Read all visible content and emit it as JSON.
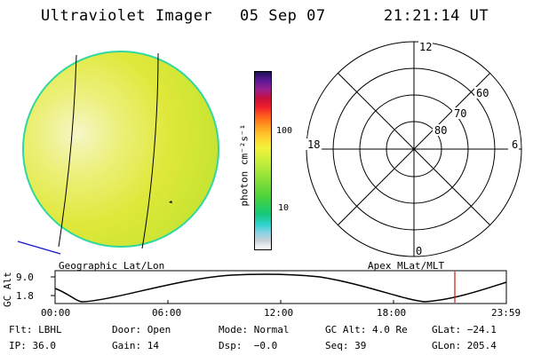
{
  "header": {
    "title": "Ultraviolet Imager",
    "date": "05 Sep 07",
    "time": "21:21:14 UT"
  },
  "panels": {
    "left_label": "Geographic Lat/Lon",
    "right_label": "Apex MLat/MLT"
  },
  "colorbar": {
    "label": "photon cm⁻²s⁻¹",
    "ticks": [
      "100",
      "10"
    ]
  },
  "polar_plot": {
    "mlt_labels": {
      "top": "12",
      "right": "6",
      "bottom": "0",
      "left": "18"
    },
    "mlat_labels": [
      "60",
      "70",
      "80"
    ]
  },
  "altitude_plot": {
    "ylabel": "GC Alt",
    "y_ticks": [
      "9.0",
      "1.8"
    ],
    "time_ticks": [
      "00:00",
      "06:00",
      "12:00",
      "18:00",
      "23:59"
    ],
    "current_time_color": "#d01818"
  },
  "info": {
    "row1": [
      "Flt: LBHL",
      "Door: Open",
      "Mode: Normal",
      "GC Alt: 4.0 Re",
      "GLat: −24.1"
    ],
    "row2": [
      "IP: 36.0",
      "Gain: 14",
      "Dsp:  −0.0",
      "Seq: 39",
      "GLon: 205.4"
    ]
  },
  "colors": {
    "disk_main": "#dfe83a",
    "disk_edge": "#30d8a0",
    "limb_line": "#1414c8"
  }
}
